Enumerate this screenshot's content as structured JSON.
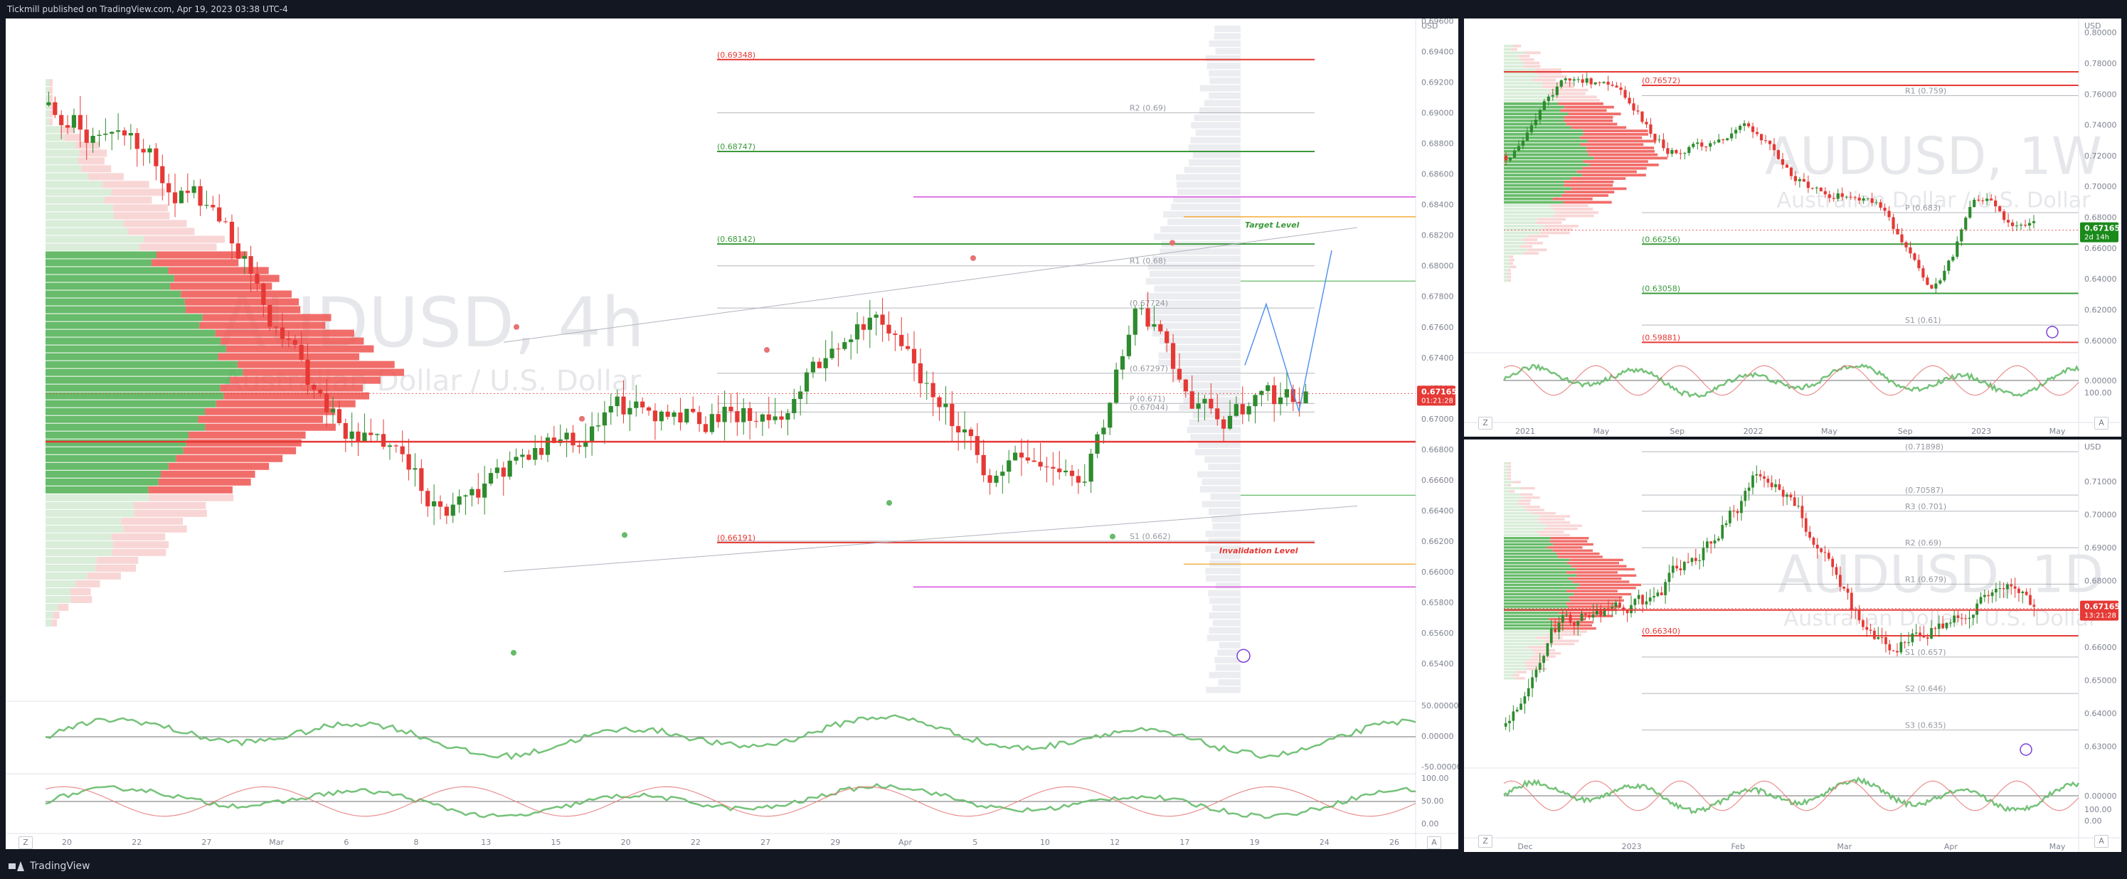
{
  "header": {
    "title": "Tickmill published on TradingView.com, Apr 19, 2023 03:38 UTC-4"
  },
  "footer": {
    "brand": "TradingView"
  },
  "colors": {
    "up": "#2e8b2e",
    "down": "#e53935",
    "green_line": "#3a9a3a",
    "red_line": "#e53935",
    "price_tag": "#e53935",
    "price_tag_weekly": "#1b8a1b",
    "magenta": "#d84de0",
    "orange": "#f39c12",
    "blue_path": "#4a8ef0",
    "purple": "#7b3fd6"
  },
  "chart_data": [
    {
      "id": "main",
      "type": "candlestick",
      "watermark_symbol": "AUDUSD, 4h",
      "watermark_name": "Australian Dollar / U.S. Dollar",
      "currency_label": "USD",
      "ylim": [
        0.652,
        0.6957
      ],
      "y_ticks": [
        "0.69600",
        "0.69400",
        "0.69200",
        "0.69000",
        "0.68800",
        "0.68600",
        "0.68400",
        "0.68200",
        "0.68000",
        "0.67800",
        "0.67600",
        "0.67400",
        "0.67200",
        "0.67000",
        "0.66800",
        "0.66600",
        "0.66400",
        "0.66200",
        "0.66000",
        "0.65800",
        "0.65600",
        "0.65400"
      ],
      "x_ticks": [
        "20",
        "22",
        "27",
        "Mar",
        "6",
        "8",
        "13",
        "15",
        "20",
        "22",
        "27",
        "29",
        "Apr",
        "5",
        "10",
        "12",
        "17",
        "19",
        "24",
        "26"
      ],
      "price_tag": "0.67165",
      "price_countdown": "01:21:28",
      "levels": [
        {
          "label": "(0.69348)",
          "value": 0.69348,
          "color": "red"
        },
        {
          "label": "R2 (0.69)",
          "value": 0.69,
          "color": "gray"
        },
        {
          "label": "(0.68747)",
          "value": 0.68747,
          "color": "green"
        },
        {
          "label": "(0.68142)",
          "value": 0.68142,
          "color": "green"
        },
        {
          "label": "R1 (0.68)",
          "value": 0.68,
          "color": "gray"
        },
        {
          "label": "(0.67724)",
          "value": 0.67724,
          "color": "gray"
        },
        {
          "label": "(0.67297)",
          "value": 0.67297,
          "color": "gray"
        },
        {
          "label": "(0.67044)",
          "value": 0.67044,
          "color": "gray"
        },
        {
          "label": "P (0.671)",
          "value": 0.671,
          "color": "gray"
        },
        {
          "label": "(0.66191)",
          "value": 0.66191,
          "color": "red"
        },
        {
          "label": "S1 (0.662)",
          "value": 0.662,
          "color": "gray"
        }
      ],
      "annotations": [
        {
          "text": "Target Level",
          "value": 0.6825,
          "color": "green"
        },
        {
          "text": "Invalidation Level",
          "value": 0.6612,
          "color": "red"
        }
      ],
      "osc1_ticks": [
        "50.00000",
        "0.00000",
        "-50.00000"
      ],
      "osc2_ticks": [
        "100.00",
        "50.00",
        "0.00"
      ],
      "buttons": [
        "Z",
        "A"
      ]
    },
    {
      "id": "weekly",
      "type": "candlestick",
      "watermark_symbol": "AUDUSD, 1W",
      "watermark_name": "Australian Dollar / U.S. Dollar",
      "currency_label": "USD",
      "ylim": [
        0.5985,
        0.8045
      ],
      "y_ticks": [
        "0.80000",
        "0.78000",
        "0.76000",
        "0.74000",
        "0.72000",
        "0.70000",
        "0.68000",
        "0.66000",
        "0.64000",
        "0.62000",
        "0.60000"
      ],
      "x_ticks": [
        "2021",
        "May",
        "Sep",
        "2022",
        "May",
        "Sep",
        "2023",
        "May"
      ],
      "price_tag": "0.67165",
      "price_countdown": "2d 14h",
      "levels": [
        {
          "label": "(0.76572)",
          "value": 0.76572,
          "color": "red"
        },
        {
          "label": "R1 (0.759)",
          "value": 0.759,
          "color": "gray"
        },
        {
          "label": "P (0.683)",
          "value": 0.683,
          "color": "gray"
        },
        {
          "label": "(0.66256)",
          "value": 0.66256,
          "color": "green"
        },
        {
          "label": "(0.63058)",
          "value": 0.63058,
          "color": "green"
        },
        {
          "label": "S1 (0.61)",
          "value": 0.61,
          "color": "gray"
        },
        {
          "label": "(0.59881)",
          "value": 0.59881,
          "color": "red"
        }
      ],
      "osc_ticks": [
        "0.00000"
      ],
      "osc2_ticks": [
        "100.00"
      ],
      "buttons": [
        "Z",
        "A"
      ]
    },
    {
      "id": "daily",
      "type": "candlestick",
      "watermark_symbol": "AUDUSD, 1D",
      "watermark_name": "Australian Dollar / U.S. Dollar",
      "currency_label": "USD",
      "ylim": [
        0.6265,
        0.7205
      ],
      "y_ticks": [
        "0.71000",
        "0.70000",
        "0.69000",
        "0.68000",
        "0.67000",
        "0.66000",
        "0.65000",
        "0.64000",
        "0.63000"
      ],
      "x_ticks": [
        "Dec",
        "2023",
        "Feb",
        "Mar",
        "Apr",
        "May"
      ],
      "price_tag": "0.67165",
      "price_countdown": "13:21:28",
      "levels": [
        {
          "label": "(0.71898)",
          "value": 0.71898,
          "color": "gray"
        },
        {
          "label": "(0.70587)",
          "value": 0.70587,
          "color": "gray"
        },
        {
          "label": "R3 (0.701)",
          "value": 0.701,
          "color": "gray"
        },
        {
          "label": "R2 (0.69)",
          "value": 0.69,
          "color": "gray"
        },
        {
          "label": "R1 (0.679)",
          "value": 0.679,
          "color": "gray"
        },
        {
          "label": "(0.66340)",
          "value": 0.6634,
          "color": "red"
        },
        {
          "label": "S1 (0.657)",
          "value": 0.657,
          "color": "gray"
        },
        {
          "label": "S2 (0.646)",
          "value": 0.646,
          "color": "gray"
        },
        {
          "label": "S3 (0.635)",
          "value": 0.635,
          "color": "gray"
        }
      ],
      "osc_ticks": [
        "0.00000"
      ],
      "osc2_ticks": [
        "100.00",
        "0.00"
      ],
      "buttons": [
        "Z",
        "A"
      ]
    }
  ]
}
